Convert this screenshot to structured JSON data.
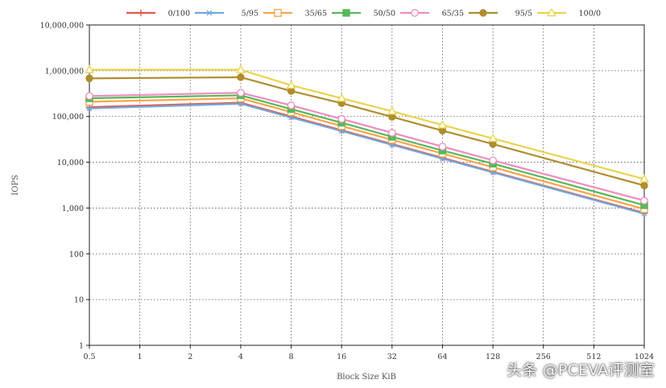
{
  "chart_data": {
    "type": "line",
    "title": "",
    "xlabel": "Block Size KiB",
    "ylabel": "IOPS",
    "x_scale": "log2",
    "y_scale": "log10",
    "ylim": [
      1,
      10000000
    ],
    "categories": [
      "0.5",
      "1",
      "2",
      "4",
      "8",
      "16",
      "32",
      "64",
      "128",
      "256",
      "512",
      "1024"
    ],
    "y_tick_labels": [
      "1",
      "10",
      "100",
      "1,000",
      "10,000",
      "100,000",
      "1,000,000",
      "10,000,000"
    ],
    "grid": true,
    "legend_position": "top",
    "series": [
      {
        "name": "0/100",
        "color": "#e8574b",
        "marker": "plus",
        "x": [
          "0.5",
          "4",
          "8",
          "16",
          "32",
          "64",
          "128",
          "1024"
        ],
        "values": [
          160000,
          200000,
          100000,
          50000,
          25000,
          12500,
          6200,
          780
        ]
      },
      {
        "name": "5/95",
        "color": "#6fa8dc",
        "marker": "asterisk",
        "x": [
          "0.5",
          "4",
          "8",
          "16",
          "32",
          "64",
          "128",
          "1024"
        ],
        "values": [
          150000,
          190000,
          95000,
          48000,
          24000,
          12000,
          6000,
          750
        ]
      },
      {
        "name": "35/65",
        "color": "#f6a54a",
        "marker": "open-square",
        "x": [
          "0.5",
          "4",
          "8",
          "16",
          "32",
          "64",
          "128",
          "1024"
        ],
        "values": [
          210000,
          250000,
          125000,
          62000,
          31000,
          15500,
          7800,
          950
        ]
      },
      {
        "name": "50/50",
        "color": "#57b85a",
        "marker": "filled-square",
        "x": [
          "0.5",
          "4",
          "8",
          "16",
          "32",
          "64",
          "128",
          "1024"
        ],
        "values": [
          250000,
          290000,
          145000,
          73000,
          36000,
          18000,
          9300,
          1150
        ]
      },
      {
        "name": "65/35",
        "color": "#f08cc0",
        "marker": "open-circle",
        "x": [
          "0.5",
          "4",
          "8",
          "16",
          "32",
          "64",
          "128",
          "1024"
        ],
        "values": [
          280000,
          330000,
          175000,
          88000,
          44000,
          22000,
          11000,
          1450
        ]
      },
      {
        "name": "95/5",
        "color": "#b08d2e",
        "marker": "filled-circle",
        "x": [
          "0.5",
          "4",
          "8",
          "16",
          "32",
          "64",
          "128",
          "1024"
        ],
        "values": [
          680000,
          720000,
          360000,
          195000,
          98000,
          49000,
          25000,
          3100
        ]
      },
      {
        "name": "100/0",
        "color": "#e8d44d",
        "marker": "open-triangle",
        "x": [
          "0.5",
          "4",
          "8",
          "16",
          "32",
          "64",
          "128",
          "1024"
        ],
        "values": [
          1050000,
          1050000,
          480000,
          250000,
          130000,
          65000,
          33000,
          4300
        ]
      }
    ]
  },
  "watermark": "头条 @PCEVA评测室"
}
